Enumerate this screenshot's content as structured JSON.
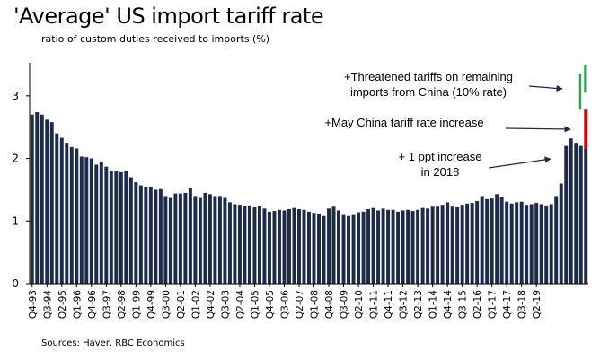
{
  "title": "'Average' US import tariff rate",
  "subtitle": "ratio of custom duties received to imports (%)",
  "source": "Sources: Haver, RBC Economics",
  "chart_data": {
    "type": "bar",
    "title": "'Average' US import tariff rate",
    "subtitle": "ratio of custom duties received to imports (%)",
    "xlabel": "",
    "ylabel": "",
    "ylim": [
      0,
      3.5
    ],
    "yticks": [
      0,
      1,
      2,
      3
    ],
    "grid": false,
    "start_quarter": "Q4-93",
    "x_tick_labels": [
      "Q4-93",
      "Q3-94",
      "Q2-95",
      "Q1-96",
      "Q4-96",
      "Q3-97",
      "Q2-98",
      "Q1-99",
      "Q4-99",
      "Q3-00",
      "Q2-01",
      "Q1-02",
      "Q4-02",
      "Q3-03",
      "Q2-04",
      "Q1-05",
      "Q4-05",
      "Q3-06",
      "Q2-07",
      "Q1-08",
      "Q4-08",
      "Q3-09",
      "Q2-10",
      "Q1-11",
      "Q4-11",
      "Q3-12",
      "Q2-13",
      "Q1-14",
      "Q4-14",
      "Q3-15",
      "Q2-16",
      "Q1-17",
      "Q4-17",
      "Q3-18",
      "Q2-19"
    ],
    "values": [
      2.7,
      2.74,
      2.7,
      2.62,
      2.58,
      2.4,
      2.33,
      2.25,
      2.18,
      2.16,
      2.03,
      2.02,
      2.0,
      1.9,
      1.95,
      1.87,
      1.8,
      1.8,
      1.78,
      1.8,
      1.7,
      1.62,
      1.57,
      1.55,
      1.55,
      1.5,
      1.51,
      1.4,
      1.37,
      1.44,
      1.44,
      1.45,
      1.53,
      1.4,
      1.37,
      1.45,
      1.43,
      1.4,
      1.4,
      1.37,
      1.3,
      1.27,
      1.26,
      1.24,
      1.25,
      1.22,
      1.24,
      1.2,
      1.15,
      1.16,
      1.18,
      1.17,
      1.19,
      1.21,
      1.19,
      1.18,
      1.15,
      1.13,
      1.12,
      1.08,
      1.2,
      1.23,
      1.17,
      1.11,
      1.08,
      1.11,
      1.14,
      1.15,
      1.19,
      1.21,
      1.17,
      1.2,
      1.18,
      1.18,
      1.15,
      1.17,
      1.18,
      1.16,
      1.18,
      1.21,
      1.2,
      1.23,
      1.23,
      1.26,
      1.3,
      1.23,
      1.22,
      1.26,
      1.28,
      1.29,
      1.32,
      1.4,
      1.35,
      1.36,
      1.43,
      1.38,
      1.31,
      1.28,
      1.3,
      1.31,
      1.26,
      1.27,
      1.29,
      1.27,
      1.25,
      1.27,
      1.4,
      1.6,
      2.2,
      2.32,
      2.25,
      2.2,
      2.16
    ],
    "overlays": [
      {
        "name": "+May China tariff rate increase",
        "color": "#e00000",
        "base": 2.16,
        "top": 2.78
      },
      {
        "name": "+Threatened tariffs on remaining imports from China (10% rate)",
        "color": "#10b040",
        "base_levels": [
          2.78,
          3.05
        ],
        "tops": [
          3.35,
          3.5
        ]
      }
    ],
    "annotations": [
      {
        "line1": "+Threatened  tariffs on remaining",
        "line2": "imports from China (10% rate)"
      },
      {
        "line1": "+May China tariff rate increase",
        "line2": ""
      },
      {
        "line1": "+ 1 ppt increase",
        "line2": "in 2018"
      }
    ],
    "colors": {
      "bars": "#1c2b4a",
      "red": "#e00000",
      "green": "#10b040",
      "arrow": "#1c2b4a"
    }
  }
}
